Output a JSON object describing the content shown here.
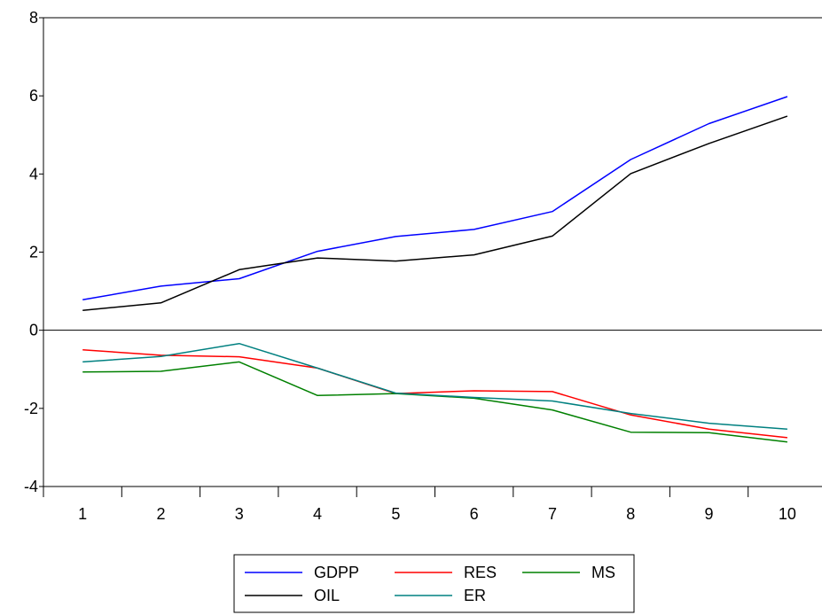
{
  "chart_data": {
    "type": "line",
    "title": "",
    "xlabel": "",
    "ylabel": "",
    "x": [
      1,
      2,
      3,
      4,
      5,
      6,
      7,
      8,
      9,
      10
    ],
    "ylim": [
      -4,
      8
    ],
    "yticks": [
      -4,
      -2,
      0,
      2,
      4,
      6,
      8
    ],
    "grid": false,
    "zero_line": true,
    "legend_position": "bottom",
    "series": [
      {
        "name": "GDPP",
        "color": "#0000ff",
        "values": [
          0.78,
          1.13,
          1.32,
          2.02,
          2.4,
          2.58,
          3.04,
          4.37,
          5.29,
          5.98
        ]
      },
      {
        "name": "RES",
        "color": "#ff0000",
        "values": [
          -0.5,
          -0.64,
          -0.68,
          -0.97,
          -1.62,
          -1.55,
          -1.57,
          -2.17,
          -2.53,
          -2.75
        ]
      },
      {
        "name": "MS",
        "color": "#008000",
        "values": [
          -1.07,
          -1.05,
          -0.81,
          -1.67,
          -1.62,
          -1.74,
          -2.04,
          -2.61,
          -2.62,
          -2.86
        ]
      },
      {
        "name": "OIL",
        "color": "#000000",
        "values": [
          0.51,
          0.7,
          1.55,
          1.85,
          1.77,
          1.93,
          2.41,
          4.01,
          4.78,
          5.48
        ]
      },
      {
        "name": "ER",
        "color": "#008080",
        "values": [
          -0.81,
          -0.67,
          -0.34,
          -0.97,
          -1.61,
          -1.72,
          -1.81,
          -2.13,
          -2.38,
          -2.53
        ]
      }
    ]
  }
}
